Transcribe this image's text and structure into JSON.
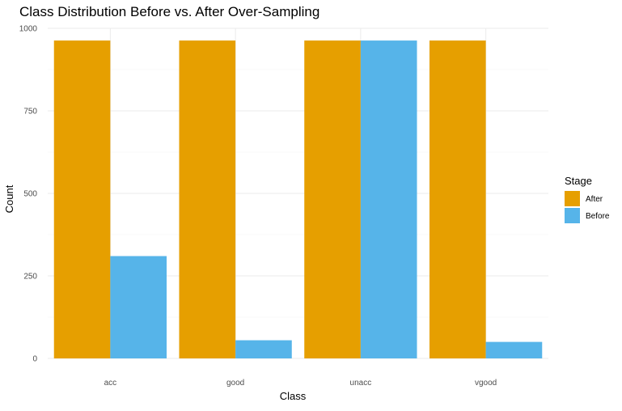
{
  "chart_data": {
    "type": "bar",
    "title": "Class Distribution Before vs. After Over-Sampling",
    "xlabel": "Class",
    "ylabel": "Count",
    "categories": [
      "acc",
      "good",
      "unacc",
      "vgood"
    ],
    "series": [
      {
        "name": "After",
        "values": [
          963,
          963,
          963,
          963
        ],
        "color": "#E69F00"
      },
      {
        "name": "Before",
        "values": [
          310,
          55,
          963,
          50
        ],
        "color": "#56B4E9"
      }
    ],
    "ylim": [
      0,
      1000
    ],
    "yticks": [
      0,
      250,
      500,
      750,
      1000
    ],
    "grid": true,
    "legend": {
      "title": "Stage",
      "position": "right"
    }
  }
}
